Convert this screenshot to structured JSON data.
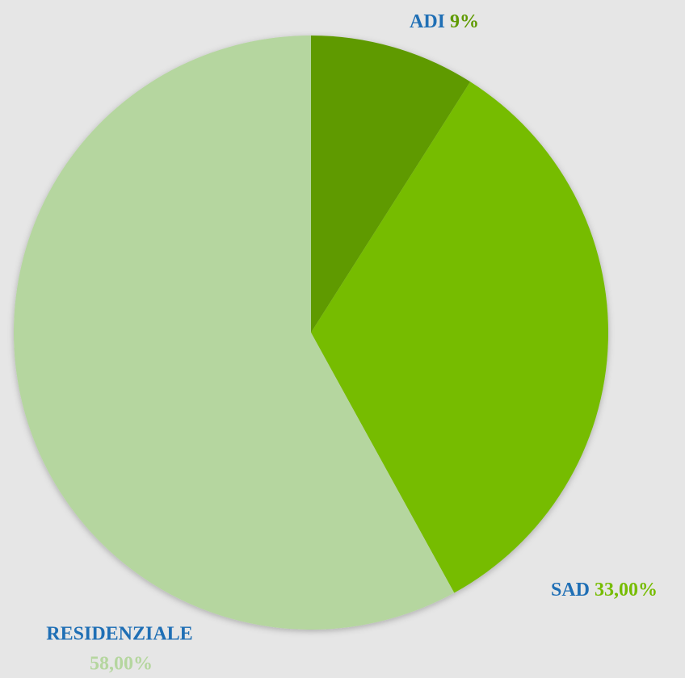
{
  "chart_data": {
    "type": "pie",
    "categories": [
      "ADI",
      "SAD",
      "RESIDENZIALE"
    ],
    "values": [
      9,
      33,
      58
    ],
    "value_labels": [
      "9%",
      "33,00%",
      "58,00%"
    ],
    "colors": [
      "#5f9a00",
      "#76bc00",
      "#b5d69f"
    ],
    "label_color": "#1f6fb5"
  }
}
